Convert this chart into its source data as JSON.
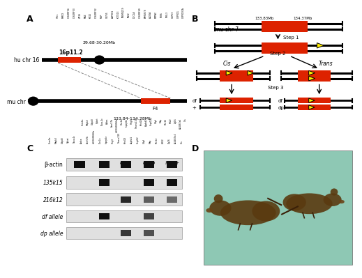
{
  "panel_labels": [
    "A",
    "B",
    "C",
    "D"
  ],
  "hu_chr16_label": "hu chr 16",
  "mu_chr7_label": "mu chr 7",
  "region_label_16p": "16p11.2",
  "region_top": "29.68-30.20Mb",
  "region_bot": "133.84-134.28Mb",
  "F4_label": "F4",
  "mu_chr7_B_label": "mu chr 7",
  "step1": "Step 1",
  "step2": "Step 2",
  "step3": "Step 3",
  "cis_label": "Cis",
  "trans_label": "Trans",
  "df_label": "df",
  "dp_label": "dp",
  "plus_label": "+",
  "mb_133": "133.83Mb",
  "mb_134": "134.37Mb",
  "genotype_cols": [
    "+/+",
    "df/+",
    "dp/+",
    "df/dp",
    "flox/+"
  ],
  "gel_rows": [
    "β-actin",
    "135k15",
    "216k12",
    "df allele",
    "dp allele"
  ],
  "top_genes": [
    "SPev",
    "PRRT2",
    "C16ORF54",
    "C16ORF53",
    "ZG16",
    "MAZ",
    "KIF22",
    "C16ORF52",
    "MVP",
    "SE765",
    "ASPHO1",
    "KCTD13",
    "TAEM4219",
    "TAO2",
    "DOC2A",
    "C16ORF49",
    "FAM4578",
    "ALDOA",
    "PIPPAC",
    "TBX6",
    "YPEL3",
    "GDPD3",
    "C0PRO1",
    "C0PRO31A"
  ],
  "bot_genes": [
    "Coro1a",
    "Mapk3",
    "Gdpd3",
    "Ypbat",
    "Tbca-4c",
    "Aldoa",
    "Fam57b",
    "4930491RiKa",
    "Doc2a",
    "Inpap6e",
    "Hng3",
    "Tmerc219",
    "Kctd13",
    "Asphd1",
    "Sept12",
    "Cdpf",
    "Map",
    "Prrr12",
    "Klf22",
    "Zg16",
    "A14467a4",
    "Gls"
  ],
  "background": "#ffffff",
  "black": "#000000",
  "red_region": "#dd2200",
  "yellow": "#ffee00",
  "gel_bg_light": "#e0e0e0",
  "gel_bg_dark": "#c8c8c8",
  "band_dark": "#111111",
  "band_mid": "#555555",
  "band_faint": "#888888",
  "band_patterns": [
    [
      1.0,
      1.0,
      1.0,
      1.0,
      1.0
    ],
    [
      0.0,
      1.0,
      0.0,
      1.0,
      1.0
    ],
    [
      0.0,
      0.0,
      0.8,
      0.4,
      0.3
    ],
    [
      0.0,
      1.0,
      0.0,
      0.6,
      0.0
    ],
    [
      0.0,
      0.0,
      0.7,
      0.5,
      0.0
    ]
  ]
}
